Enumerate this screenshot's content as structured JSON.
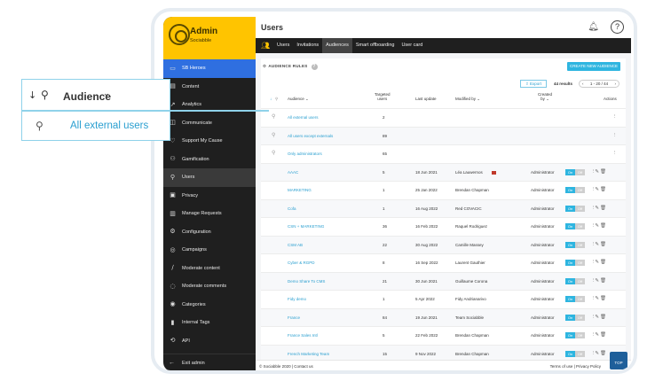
{
  "app": {
    "title": "Admin",
    "subtitle": "Sociabble"
  },
  "sidebar": {
    "items": [
      {
        "label": "SB Heroes",
        "icon": "screen-icon"
      },
      {
        "label": "Content",
        "icon": "content-icon"
      },
      {
        "label": "Analytics",
        "icon": "analytics-icon"
      },
      {
        "label": "Communicate",
        "icon": "communicate-icon"
      },
      {
        "label": "Support My Cause",
        "icon": "heart-icon"
      },
      {
        "label": "Gamification",
        "icon": "gamepad-icon"
      },
      {
        "label": "Users",
        "icon": "users-icon"
      },
      {
        "label": "Privacy",
        "icon": "privacy-icon"
      },
      {
        "label": "Manage Requests",
        "icon": "requests-icon"
      },
      {
        "label": "Configuration",
        "icon": "gear-icon"
      },
      {
        "label": "Campaigns",
        "icon": "globe-icon"
      },
      {
        "label": "Moderate content",
        "icon": "moderate-icon"
      },
      {
        "label": "Moderate comments",
        "icon": "comments-icon"
      },
      {
        "label": "Categories",
        "icon": "categories-icon"
      },
      {
        "label": "Internal Tags",
        "icon": "tag-icon"
      },
      {
        "label": "API",
        "icon": "api-icon"
      }
    ],
    "exit": "Exit admin"
  },
  "header": {
    "title": "Users"
  },
  "tabs": [
    "Users",
    "Invitations",
    "Audiences",
    "Smart offboarding",
    "User card"
  ],
  "toolbar": {
    "section_title": "AUDIENCE RULES",
    "create": "CREATE NEW AUDIENCE",
    "export": "Export",
    "results": "44 results",
    "pager": "1 - 20 / 44"
  },
  "columns": {
    "audience": "Audience",
    "targeted_line1": "Targeted",
    "targeted_line2": "users",
    "last_update": "Last update",
    "modified_by": "Modified by",
    "created_line1": "Created",
    "created_line2": "by",
    "actions": "Actions"
  },
  "rows": [
    {
      "name": "All external users",
      "count": "2",
      "date": "",
      "modified": "",
      "created": "",
      "system": true
    },
    {
      "name": "All users except externals",
      "count": "89",
      "date": "",
      "modified": "",
      "created": "",
      "system": true
    },
    {
      "name": "Only administrators",
      "count": "65",
      "date": "",
      "modified": "",
      "created": "",
      "system": true
    },
    {
      "name": "AAAC",
      "count": "5",
      "date": "18 Jun 2021",
      "modified": "Léa Lauwernos",
      "created": "Administrator",
      "flag": true
    },
    {
      "name": "MARKETING",
      "count": "1",
      "date": "25 Jan 2022",
      "modified": "Brendan Chapman",
      "created": "Administrator"
    },
    {
      "name": "Cofa",
      "count": "1",
      "date": "16 Aug 2022",
      "modified": "Red COVACIC",
      "created": "Administrator"
    },
    {
      "name": "CSN + MARKETING",
      "count": "36",
      "date": "16 Feb 2022",
      "modified": "Raquel Rodriguez",
      "created": "Administrator"
    },
    {
      "name": "CSM AB",
      "count": "22",
      "date": "30 Aug 2022",
      "modified": "Camille Massey",
      "created": "Administrator"
    },
    {
      "name": "Cyber & RGPD",
      "count": "8",
      "date": "16 Sep 2022",
      "modified": "Laurent Gauthier",
      "created": "Administrator"
    },
    {
      "name": "Demo Share To CMS",
      "count": "21",
      "date": "30 Jun 2021",
      "modified": "Guillaume Corona",
      "created": "Administrator"
    },
    {
      "name": "Fidy demo",
      "count": "1",
      "date": "5 Apr 2022",
      "modified": "Fidy Andrianarivo",
      "created": "Administrator"
    },
    {
      "name": "France",
      "count": "84",
      "date": "19 Jun 2021",
      "modified": "Team Sociabble",
      "created": "Administrator"
    },
    {
      "name": "France Sales Intl",
      "count": "5",
      "date": "22 Feb 2022",
      "modified": "Brendan Chapman",
      "created": "Administrator"
    },
    {
      "name": "French Marketing Team",
      "count": "15",
      "date": "9 Nov 2022",
      "modified": "Brendan Chapman",
      "created": "Administrator"
    }
  ],
  "toggle": {
    "on": "On",
    "off": "Off"
  },
  "footer": {
    "left": "© Sociabble 2020 | Contact us",
    "right": "Terms of use | Privacy Policy",
    "top": "TOP"
  },
  "callout": {
    "label": "Audience",
    "item": "All external users"
  },
  "colors": {
    "accent": "#2eb5e0",
    "brand": "#ffc400",
    "sidebar": "#1f1f1f",
    "callout_border": "#8fd2ea"
  }
}
